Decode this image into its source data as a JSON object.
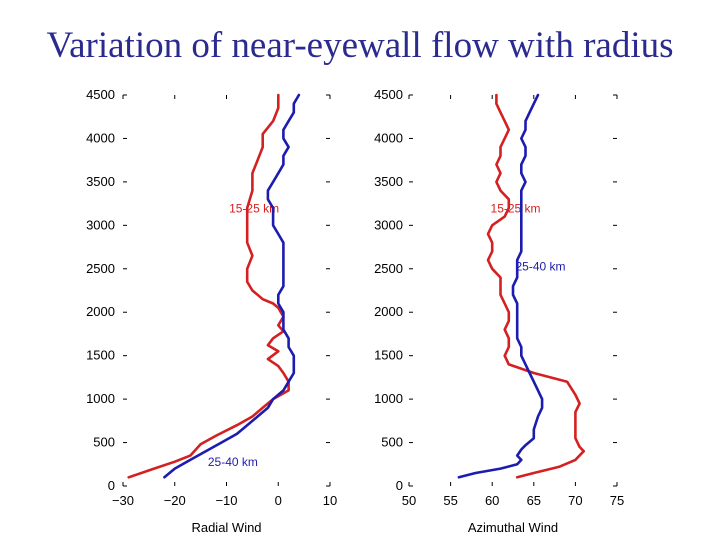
{
  "page": {
    "title": "Variation of near-eyewall flow with radius"
  },
  "chart_data": [
    {
      "type": "line",
      "title": "",
      "xlabel": "Radial Wind",
      "ylabel": "",
      "xlim": [
        -30,
        10
      ],
      "ylim": [
        0,
        4500
      ],
      "xticks": [
        -30,
        -20,
        -10,
        0,
        10
      ],
      "xtick_labels": [
        "−30",
        "−20",
        "−10",
        "0",
        "10"
      ],
      "yticks": [
        0,
        500,
        1000,
        1500,
        2000,
        2500,
        3000,
        3500,
        4000,
        4500
      ],
      "ytick_labels": [
        "0",
        "500",
        "1000",
        "1500",
        "2000",
        "2500",
        "3000",
        "3500",
        "4000",
        "4500"
      ],
      "series": [
        {
          "name": "15-25 km",
          "color": "#d42020",
          "label_xy": [
            -9.5,
            3150
          ],
          "points": [
            [
              -28.9,
              100
            ],
            [
              -24,
              200
            ],
            [
              -20,
              280
            ],
            [
              -17,
              350
            ],
            [
              -15,
              480
            ],
            [
              -12,
              580
            ],
            [
              -8,
              700
            ],
            [
              -5,
              800
            ],
            [
              -3,
              900
            ],
            [
              -1,
              1000
            ],
            [
              2,
              1100
            ],
            [
              2,
              1200
            ],
            [
              1,
              1300
            ],
            [
              0,
              1380
            ],
            [
              -2,
              1460
            ],
            [
              0,
              1550
            ],
            [
              -2,
              1620
            ],
            [
              -1,
              1700
            ],
            [
              1,
              1780
            ],
            [
              0,
              1850
            ],
            [
              1,
              1950
            ],
            [
              0,
              2050
            ],
            [
              -1,
              2100
            ],
            [
              -3,
              2150
            ],
            [
              -4,
              2200
            ],
            [
              -5,
              2250
            ],
            [
              -6,
              2350
            ],
            [
              -6,
              2500
            ],
            [
              -5,
              2650
            ],
            [
              -6,
              2800
            ],
            [
              -6,
              3000
            ],
            [
              -6,
              3200
            ],
            [
              -5,
              3400
            ],
            [
              -5,
              3500
            ],
            [
              -5,
              3600
            ],
            [
              -4,
              3750
            ],
            [
              -3,
              3900
            ],
            [
              -3,
              4050
            ],
            [
              -1,
              4200
            ],
            [
              0,
              4350
            ],
            [
              0,
              4500
            ]
          ]
        },
        {
          "name": "25-40 km",
          "color": "#1c1cb0",
          "label_xy": [
            -13.6,
            230
          ],
          "points": [
            [
              -22,
              100
            ],
            [
              -20,
              200
            ],
            [
              -17,
              300
            ],
            [
              -14,
              400
            ],
            [
              -11,
              500
            ],
            [
              -8,
              600
            ],
            [
              -6,
              700
            ],
            [
              -4,
              800
            ],
            [
              -2,
              900
            ],
            [
              -1,
              1000
            ],
            [
              1,
              1100
            ],
            [
              2,
              1200
            ],
            [
              3,
              1300
            ],
            [
              3,
              1400
            ],
            [
              3,
              1500
            ],
            [
              2,
              1600
            ],
            [
              2,
              1700
            ],
            [
              1,
              1800
            ],
            [
              1,
              1900
            ],
            [
              1,
              2000
            ],
            [
              0,
              2100
            ],
            [
              0,
              2200
            ],
            [
              1,
              2300
            ],
            [
              1,
              2400
            ],
            [
              1,
              2500
            ],
            [
              1,
              2600
            ],
            [
              1,
              2700
            ],
            [
              1,
              2800
            ],
            [
              0,
              2900
            ],
            [
              -1,
              3000
            ],
            [
              -1,
              3100
            ],
            [
              -1,
              3200
            ],
            [
              -2,
              3300
            ],
            [
              -2,
              3400
            ],
            [
              -1,
              3500
            ],
            [
              0,
              3600
            ],
            [
              1,
              3700
            ],
            [
              1,
              3800
            ],
            [
              2,
              3900
            ],
            [
              1,
              4000
            ],
            [
              1,
              4100
            ],
            [
              2,
              4200
            ],
            [
              3,
              4300
            ],
            [
              3,
              4400
            ],
            [
              4,
              4500
            ]
          ]
        }
      ]
    },
    {
      "type": "line",
      "title": "",
      "xlabel": "Azimuthal Wind",
      "ylabel": "",
      "xlim": [
        50,
        75
      ],
      "ylim": [
        0,
        4500
      ],
      "xticks": [
        50,
        55,
        60,
        65,
        70,
        75
      ],
      "xtick_labels": [
        "50",
        "55",
        "60",
        "65",
        "70",
        "75"
      ],
      "yticks": [
        0,
        500,
        1000,
        1500,
        2000,
        2500,
        3000,
        3500,
        4000,
        4500
      ],
      "ytick_labels": [
        "0",
        "500",
        "1000",
        "1500",
        "2000",
        "2500",
        "3000",
        "3500",
        "4000",
        "4500"
      ],
      "series": [
        {
          "name": "15-25 km",
          "color": "#d42020",
          "label_xy": [
            59.8,
            3150
          ],
          "points": [
            [
              63,
              100
            ],
            [
              65,
              150
            ],
            [
              68,
              220
            ],
            [
              70,
              300
            ],
            [
              71,
              400
            ],
            [
              70.5,
              450
            ],
            [
              70,
              550
            ],
            [
              70,
              650
            ],
            [
              70,
              750
            ],
            [
              70,
              850
            ],
            [
              70.5,
              950
            ],
            [
              70,
              1050
            ],
            [
              69,
              1200
            ],
            [
              65,
              1300
            ],
            [
              62,
              1400
            ],
            [
              61.5,
              1500
            ],
            [
              62,
              1600
            ],
            [
              62,
              1700
            ],
            [
              61.5,
              1800
            ],
            [
              62,
              1900
            ],
            [
              62,
              2000
            ],
            [
              61.5,
              2100
            ],
            [
              61,
              2200
            ],
            [
              61,
              2300
            ],
            [
              61,
              2400
            ],
            [
              60,
              2500
            ],
            [
              59.5,
              2600
            ],
            [
              60,
              2700
            ],
            [
              60,
              2800
            ],
            [
              59.5,
              2900
            ],
            [
              60,
              3000
            ],
            [
              61.5,
              3100
            ],
            [
              62,
              3200
            ],
            [
              62,
              3300
            ],
            [
              61,
              3400
            ],
            [
              60.5,
              3500
            ],
            [
              61,
              3600
            ],
            [
              60.5,
              3700
            ],
            [
              61,
              3800
            ],
            [
              61,
              3900
            ],
            [
              61.5,
              4000
            ],
            [
              62,
              4100
            ],
            [
              61.5,
              4200
            ],
            [
              61,
              4300
            ],
            [
              60.5,
              4400
            ],
            [
              60.5,
              4500
            ]
          ]
        },
        {
          "name": "25-40 km",
          "color": "#1c1cb0",
          "label_xy": [
            62.8,
            2480
          ],
          "points": [
            [
              56,
              100
            ],
            [
              58,
              150
            ],
            [
              61,
              200
            ],
            [
              63,
              250
            ],
            [
              63.5,
              300
            ],
            [
              63,
              350
            ],
            [
              63.5,
              420
            ],
            [
              64,
              470
            ],
            [
              65,
              550
            ],
            [
              65,
              650
            ],
            [
              65.5,
              800
            ],
            [
              66,
              900
            ],
            [
              66,
              1000
            ],
            [
              65.5,
              1100
            ],
            [
              65,
              1200
            ],
            [
              64.5,
              1300
            ],
            [
              64,
              1400
            ],
            [
              63.5,
              1500
            ],
            [
              63.5,
              1600
            ],
            [
              63,
              1700
            ],
            [
              63,
              1800
            ],
            [
              63,
              1900
            ],
            [
              63,
              2000
            ],
            [
              63,
              2100
            ],
            [
              62.5,
              2200
            ],
            [
              62.5,
              2300
            ],
            [
              63,
              2400
            ],
            [
              63,
              2500
            ],
            [
              63,
              2600
            ],
            [
              63.5,
              2700
            ],
            [
              63.5,
              2800
            ],
            [
              63.5,
              2900
            ],
            [
              63.5,
              3000
            ],
            [
              63.5,
              3100
            ],
            [
              63.5,
              3200
            ],
            [
              63.5,
              3300
            ],
            [
              63.5,
              3400
            ],
            [
              64,
              3500
            ],
            [
              63.5,
              3600
            ],
            [
              63.5,
              3700
            ],
            [
              64,
              3800
            ],
            [
              64,
              3900
            ],
            [
              63.5,
              4000
            ],
            [
              64,
              4100
            ],
            [
              64,
              4200
            ],
            [
              64.5,
              4300
            ],
            [
              65,
              4400
            ],
            [
              65.5,
              4500
            ]
          ]
        }
      ]
    }
  ]
}
